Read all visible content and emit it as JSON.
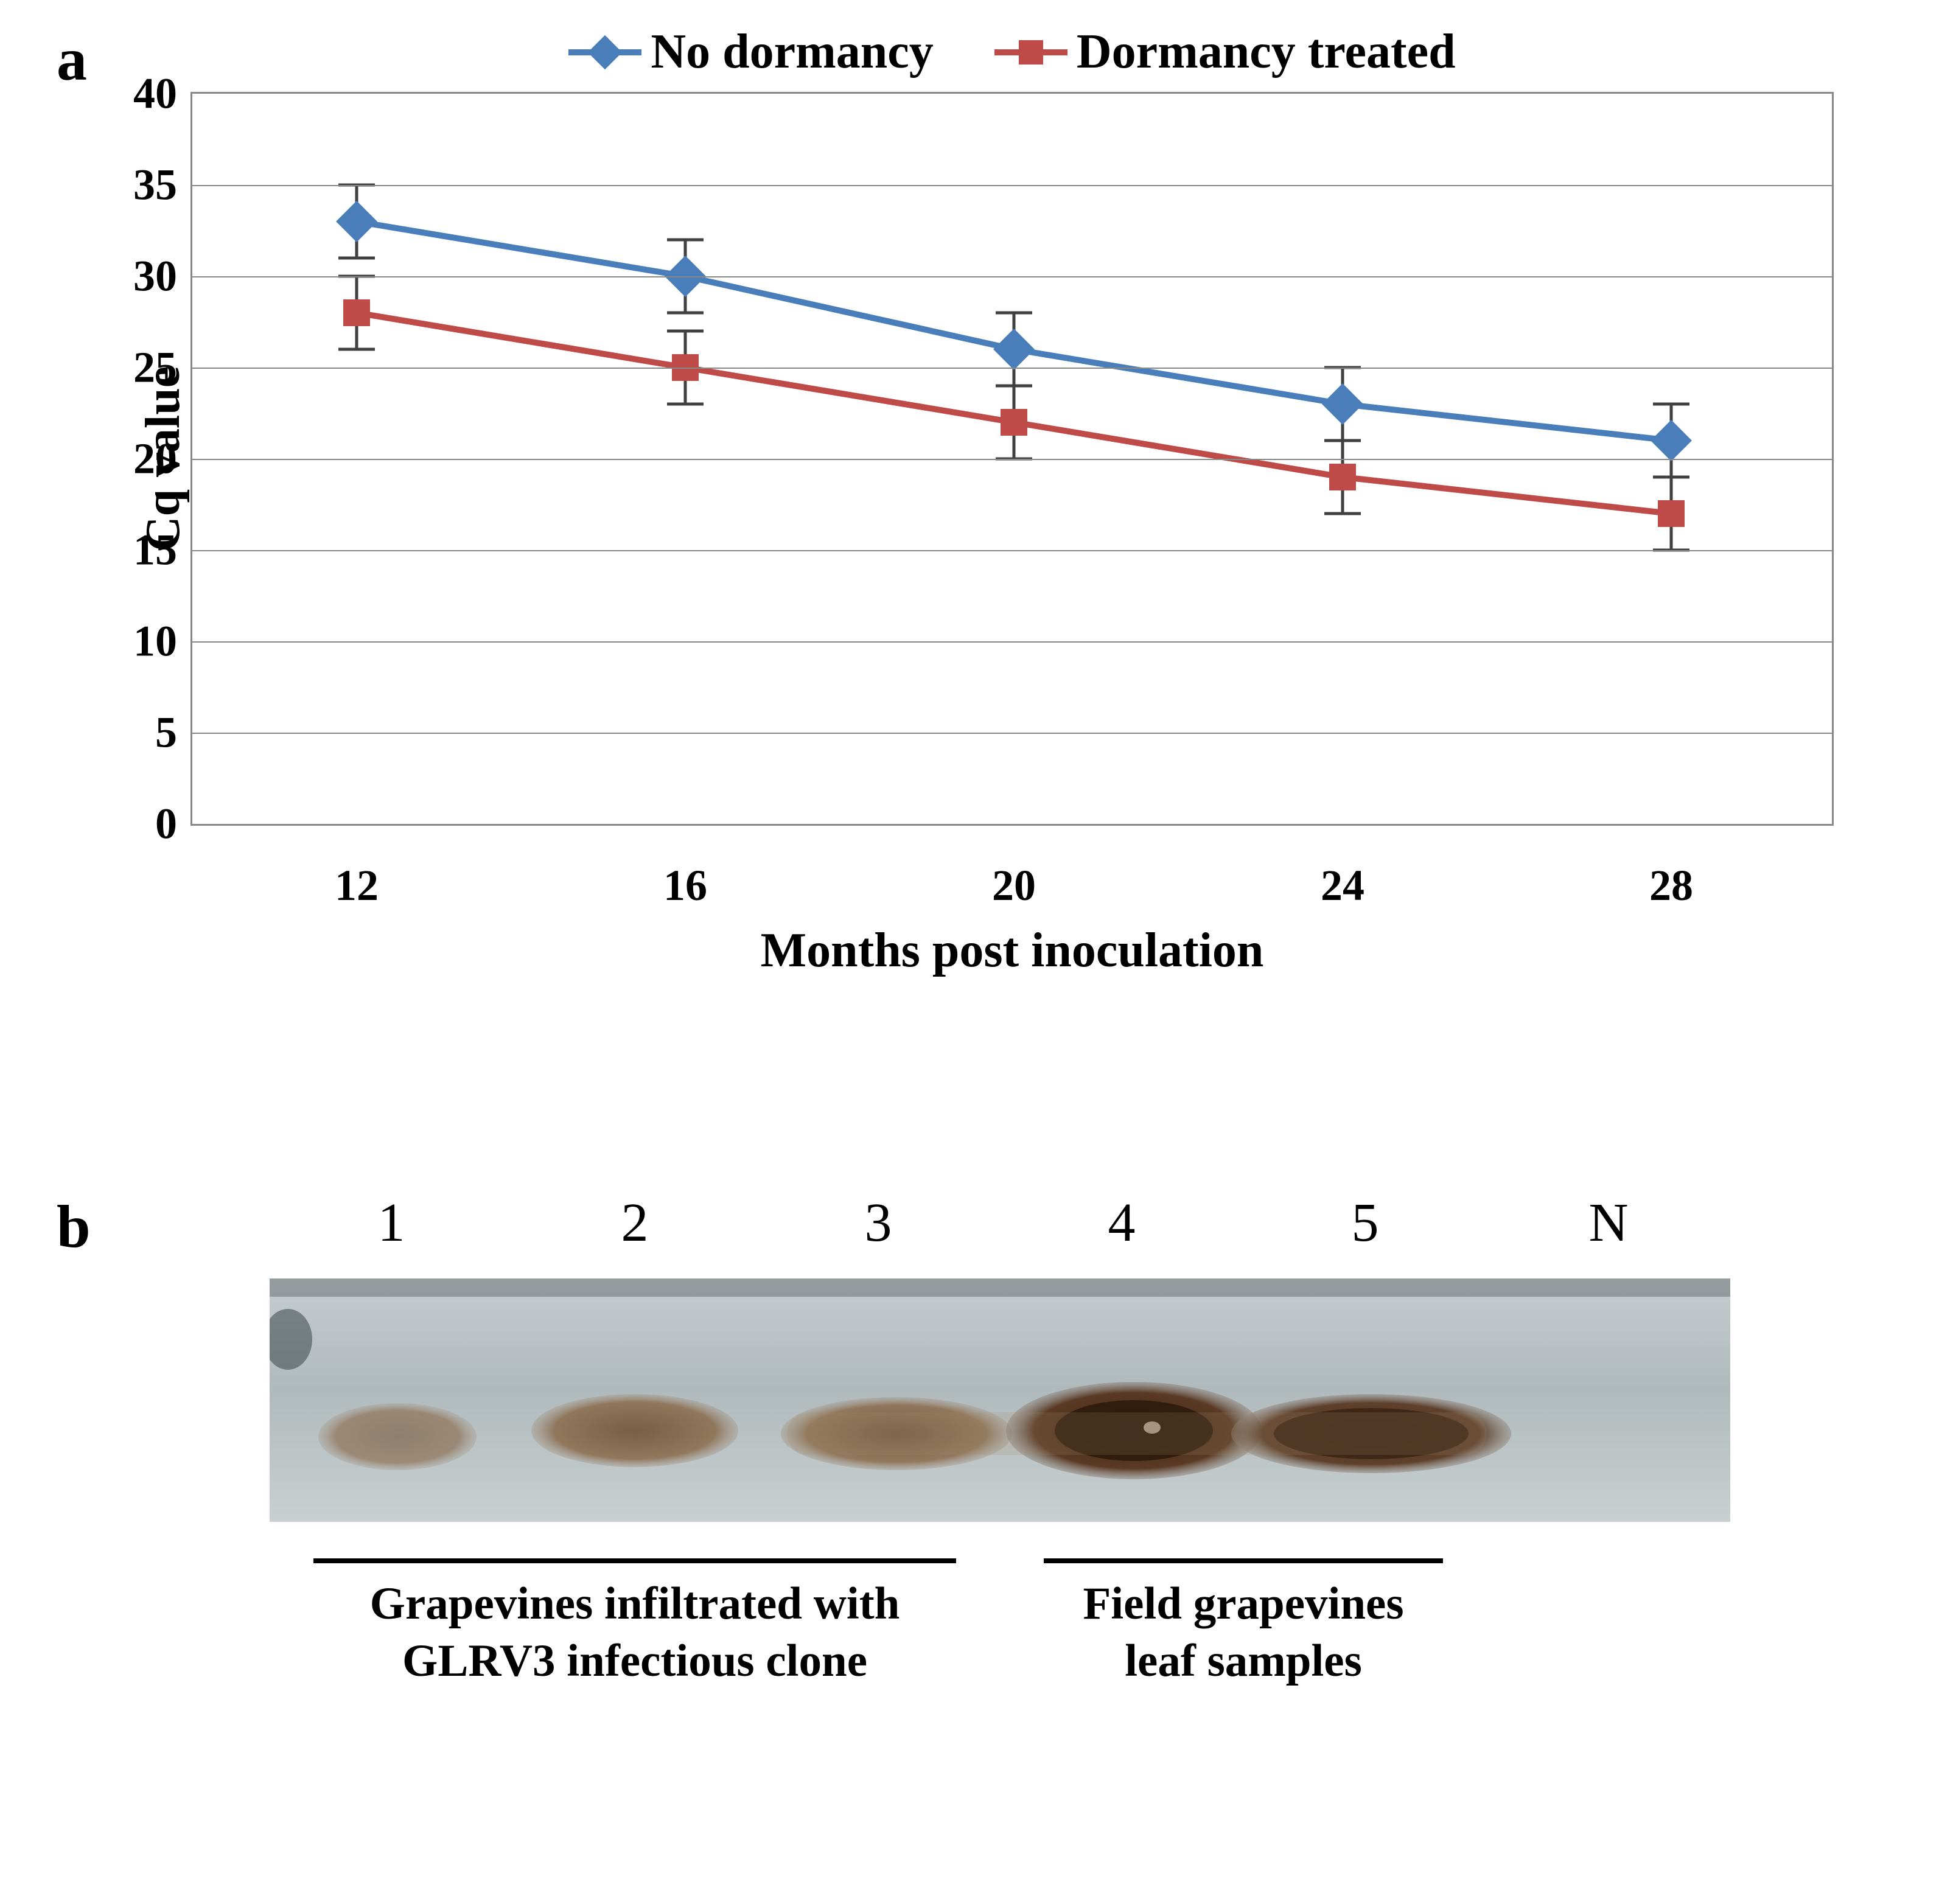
{
  "panel_a": {
    "label": "a",
    "chart": {
      "type": "line",
      "x_categories": [
        "12",
        "16",
        "20",
        "24",
        "28"
      ],
      "y_axis": {
        "min": 0,
        "max": 40,
        "step": 5,
        "label": "Cq value"
      },
      "x_axis": {
        "label": "Months post inoculation"
      },
      "series": [
        {
          "name": "No dormancy",
          "color": "#4a7ebb",
          "marker": "diamond",
          "marker_size": 48,
          "line_width": 10,
          "y": [
            33,
            30,
            26,
            23,
            21
          ],
          "err": [
            2,
            2,
            2,
            2,
            2
          ]
        },
        {
          "name": "Dormancy treated",
          "color": "#be4b48",
          "marker": "square",
          "marker_size": 44,
          "line_width": 10,
          "y": [
            28,
            25,
            22,
            19,
            17
          ],
          "err": [
            2,
            2,
            2,
            2,
            2
          ]
        }
      ],
      "error_bar_color": "#404040",
      "grid_color": "#888888",
      "background_color": "#ffffff",
      "tick_font_size_pt": 24,
      "label_font_size_pt": 26
    }
  },
  "panel_b": {
    "label": "b",
    "lanes": [
      "1",
      "2",
      "3",
      "4",
      "5",
      "N"
    ],
    "groups": [
      {
        "label_lines": [
          "Grapevines infiltrated with",
          "GLRV3 infectious clone"
        ],
        "lanes": [
          1,
          2,
          3
        ]
      },
      {
        "label_lines": [
          "Field grapevines",
          "leaf samples"
        ],
        "lanes": [
          4,
          5
        ]
      }
    ],
    "blot": {
      "background_color": "#b8c1c3",
      "band_colors": {
        "dark": "#5a3a24",
        "mid": "#8a6a4a",
        "light": "#a98e6f"
      },
      "lane_count": 6
    }
  }
}
